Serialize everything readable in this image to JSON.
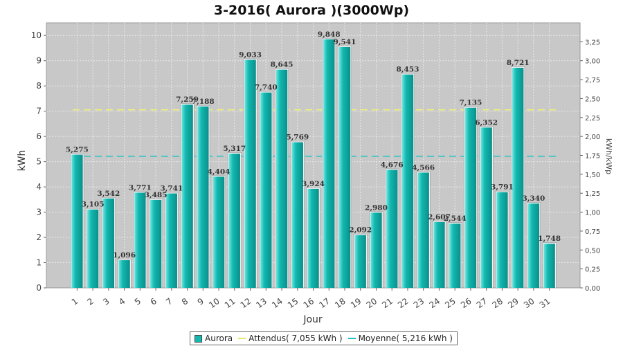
{
  "chart_data": {
    "type": "bar",
    "title": "3-2016( Aurora )(3000Wp)",
    "xlabel": "Jour",
    "ylabel": "kWh",
    "y2label": "kWh/kWp",
    "ylim": [
      0,
      10.5
    ],
    "y2lim": [
      0,
      3.5
    ],
    "yticks": [
      "0",
      "1",
      "2",
      "3",
      "4",
      "5",
      "6",
      "7",
      "8",
      "9",
      "10"
    ],
    "y2ticks": [
      "0,00",
      "0,25",
      "0,50",
      "0,75",
      "1,00",
      "1,25",
      "1,50",
      "1,75",
      "2,00",
      "2,25",
      "2,50",
      "2,75",
      "3,00",
      "3,25"
    ],
    "grid": true,
    "legend_position": "bottom",
    "categories": [
      "1",
      "2",
      "3",
      "4",
      "5",
      "6",
      "7",
      "8",
      "9",
      "10",
      "11",
      "12",
      "13",
      "14",
      "15",
      "16",
      "17",
      "18",
      "19",
      "20",
      "21",
      "22",
      "23",
      "24",
      "25",
      "26",
      "27",
      "28",
      "29",
      "30",
      "31"
    ],
    "series": [
      {
        "name": "Aurora",
        "color": "#12b8b0",
        "values": [
          5.275,
          3.105,
          3.542,
          1.096,
          3.771,
          3.485,
          3.741,
          7.259,
          7.188,
          4.404,
          5.317,
          9.033,
          7.74,
          8.645,
          5.769,
          3.924,
          9.848,
          9.541,
          2.092,
          2.98,
          4.676,
          8.453,
          4.566,
          2.607,
          2.544,
          7.135,
          6.352,
          3.791,
          8.721,
          3.34,
          1.748
        ],
        "value_labels": [
          "5,275",
          "3,105",
          "3,542",
          "1,096",
          "3,771",
          "3,485",
          "3,741",
          "7,259",
          "7,188",
          "4,404",
          "5,317",
          "9,033",
          "7,740",
          "8,645",
          "5,769",
          "3,924",
          "9,848",
          "9,541",
          "2,092",
          "2,980",
          "4,676",
          "8,453",
          "4,566",
          "2,607",
          "2,544",
          "7,135",
          "6,352",
          "3,791",
          "8,721",
          "3,340",
          "1,748"
        ]
      }
    ],
    "reference_lines": [
      {
        "name": "Attendus( 7,055 kWh )",
        "value": 7.055,
        "color": "#f0f07a",
        "style": "dashed"
      },
      {
        "name": "Moyenne( 5,216 kWh )",
        "value": 5.216,
        "color": "#22c4c4",
        "style": "dashed"
      }
    ],
    "colors": {
      "plot_bg": "#c8c8c8",
      "grid": "#e8e8e8"
    }
  }
}
